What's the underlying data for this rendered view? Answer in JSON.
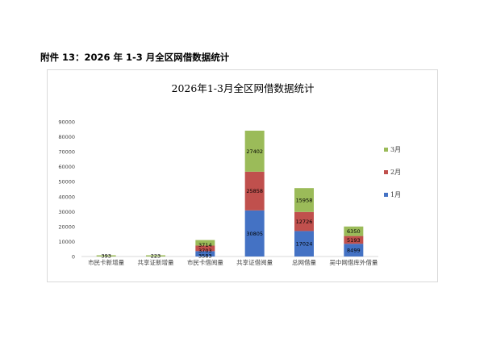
{
  "document": {
    "heading": "附件 13：2026 年 1-3 月全区网借数据统计"
  },
  "chart_data": {
    "type": "bar",
    "stacked": true,
    "title": "2026年1-3月全区网借数据统计",
    "xlabel": "",
    "ylabel": "",
    "ylim": [
      0,
      90000
    ],
    "yticks": [
      0,
      10000,
      20000,
      30000,
      40000,
      50000,
      60000,
      70000,
      80000,
      90000
    ],
    "grid": false,
    "legend_position": "right",
    "categories": [
      "市民卡新增量",
      "共享证新增量",
      "市民卡借阅量",
      "共享证借阅量",
      "总网借量",
      "吴中网借库外借量"
    ],
    "series": [
      {
        "name": "1月",
        "color": "#4472C4",
        "values": [
          null,
          null,
          3583,
          30805,
          17024,
          8499
        ]
      },
      {
        "name": "2月",
        "color": "#C0504D",
        "values": [
          null,
          null,
          3703,
          25858,
          12726,
          5193
        ]
      },
      {
        "name": "3月",
        "color": "#9BBB59",
        "values": [
          393,
          223,
          3714,
          27402,
          15958,
          6350
        ]
      }
    ]
  }
}
